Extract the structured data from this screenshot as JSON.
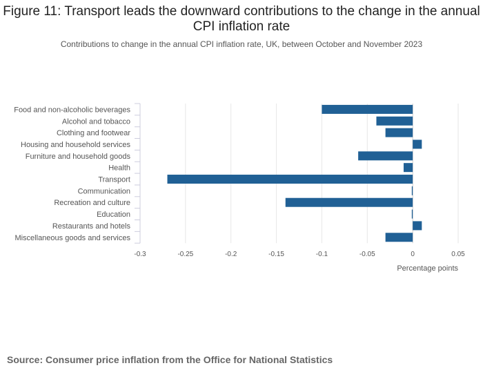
{
  "chart_data": {
    "type": "bar",
    "orientation": "horizontal",
    "title": "Figure 11: Transport leads the downward contributions to the change in the annual CPI inflation rate",
    "subtitle": "Contributions to change in the annual CPI inflation rate, UK, between October and November 2023",
    "xlabel": "Percentage points",
    "ylabel": "",
    "categories": [
      "Food and non-alcoholic beverages",
      "Alcohol and tobacco",
      "Clothing and footwear",
      "Housing and household services",
      "Furniture and household goods",
      "Health",
      "Transport",
      "Communication",
      "Recreation and culture",
      "Education",
      "Restaurants and hotels",
      "Miscellaneous goods and services"
    ],
    "values": [
      -0.1,
      -0.04,
      -0.03,
      0.01,
      -0.06,
      -0.01,
      -0.27,
      -0.001,
      -0.14,
      -0.001,
      0.01,
      -0.03
    ],
    "xlim": [
      -0.3,
      0.05
    ],
    "xticks": [
      "-0.3",
      "-0.25",
      "-0.2",
      "-0.15",
      "-0.1",
      "-0.05",
      "0",
      "0.05"
    ],
    "xtick_values": [
      -0.3,
      -0.25,
      -0.2,
      -0.15,
      -0.1,
      -0.05,
      0,
      0.05
    ],
    "grid": true,
    "bar_color": "#206095"
  },
  "source": "Source: Consumer price inflation from the Office for National Statistics"
}
